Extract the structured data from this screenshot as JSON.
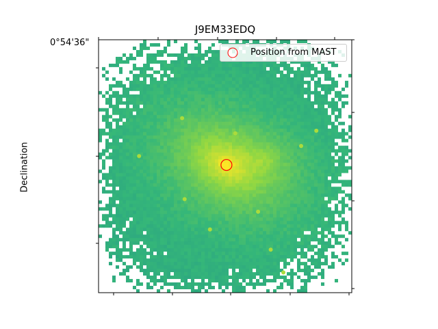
{
  "chart_data": {
    "type": "heatmap",
    "title": "J9EM33EDQ",
    "xlabel": "",
    "ylabel": "Declination",
    "y_tick_labels": [
      "0°54'36\""
    ],
    "legend": {
      "placement": "top-right",
      "entries": [
        {
          "label": "Position from MAST",
          "marker": "circle",
          "color": "#ff0000"
        }
      ]
    },
    "colormap": "viridis",
    "masked_color": "#ffffff",
    "source": {
      "label": "Position from MAST",
      "x_frac": 0.505,
      "y_frac": 0.495
    },
    "grid": false
  },
  "colors": {
    "bright": "#d9e130",
    "mid": "#3fb07a",
    "background": "#25a187",
    "frame": "#000000",
    "marker": "#ff0000"
  }
}
